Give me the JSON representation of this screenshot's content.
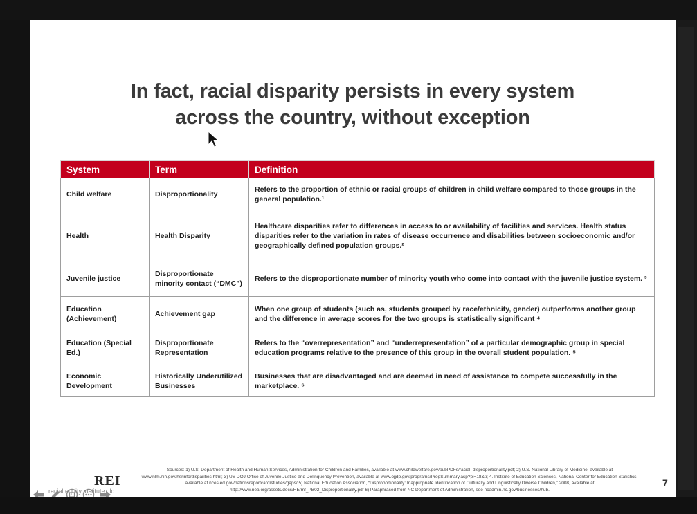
{
  "slide": {
    "title_line1": "In fact, racial disparity persists in every system",
    "title_line2": "across the country, without exception",
    "table": {
      "headers": [
        "System",
        "Term",
        "Definition"
      ],
      "rows": [
        {
          "system": "Child welfare",
          "term": "Disproportionality",
          "definition": "Refers to the proportion of ethnic or racial groups of children in child welfare compared to those groups in the general population.¹"
        },
        {
          "system": "Health",
          "term": "Health Disparity",
          "definition": "Healthcare disparities refer to differences in access to or availability of facilities and services. Health status disparities refer to the variation in rates of disease occurrence and disabilities between socioeconomic and/or geographically defined population groups.²"
        },
        {
          "system": "Juvenile justice",
          "term": "Disproportionate minority contact (“DMC”)",
          "definition": "Refers to the disproportionate number of minority youth who come into contact with the juvenile justice system. ³"
        },
        {
          "system": "Education (Achievement)",
          "term": "Achievement gap",
          "definition": "When one group of students (such as, students grouped by race/ethnicity, gender) outperforms another group and the difference in average scores for the two groups is statistically significant ⁴"
        },
        {
          "system": "Education (Special Ed.)",
          "term": "Disproportionate Representation",
          "definition": "Refers to the “overrepresentation” and “underrepresentation” of a particular demographic group in special education programs relative to the presence of this group in the overall student population. ⁵"
        },
        {
          "system": "Economic Development",
          "term": "Historically Underutilized Businesses",
          "definition": "Businesses that are disadvantaged and are deemed in need of assistance to compete successfully in the marketplace. ⁶"
        }
      ]
    },
    "logo": "REI",
    "logo_sub": "racial equity institute, llc",
    "sources": "Sources: 1) U.S. Department of Health and Human Services, Administration for Children and Families, available at www.childwelfare.gov/pubPDFs/racial_disproportionality.pdf; 2) U.S. National Library of Medicine, available at www.nlm.nih.gov/hsrinfo/disparities.html; 3) US DOJ Office of Juvenile Justice and Delinquency Prevention, available at www.ojjdp.gov/programs/ProgSummary.asp?pi=18&ti; 4. Institute of Education Sciences, National Center for Education Statistics, available at nces.ed.gov/nationsreportcard/studies/gaps/ 5) National Education Association, “Disproportionality: Inappropriate Identification of Culturally and Linguistically Diverse Children,” 2008, available at http://www.nea.org/assets/docs/HE/mf_PB02_Disproportionality.pdf 6) Paraphrased from NC Department of Administration, see ncadmin.nc.gov/businesses/hub.",
    "page_number": "7"
  },
  "icons": {
    "cursor": "mouse-pointer-icon",
    "toolbar": [
      "arrow-left-icon",
      "pen-icon",
      "slides-grid-icon",
      "more-icon",
      "arrow-right-icon"
    ]
  },
  "colors": {
    "header_red": "#c3001d",
    "title_gray": "#3a3a3a"
  }
}
